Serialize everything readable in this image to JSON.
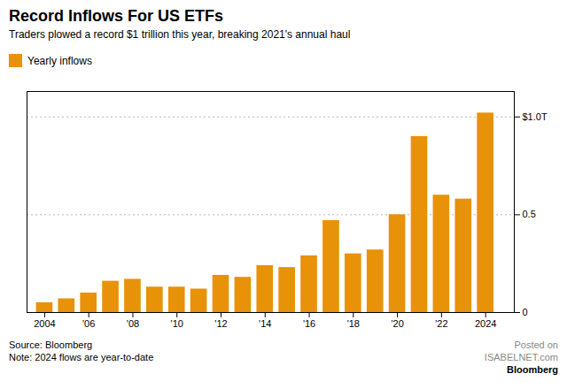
{
  "chart_data": {
    "type": "bar",
    "title": "Record Inflows For US ETFs",
    "subtitle": "Traders plowed a record $1 trillion this year, breaking 2021's annual haul",
    "annotations": [
      "Source: Bloomberg",
      "Note: 2024 flows are year-to-date",
      "Posted on",
      "ISABELNET.com",
      "Bloomberg"
    ],
    "x": [
      2004,
      2005,
      2006,
      2007,
      2008,
      2009,
      2010,
      2011,
      2012,
      2013,
      2014,
      2015,
      2016,
      2017,
      2018,
      2019,
      2020,
      2021,
      2022,
      2023,
      2024
    ],
    "series": [
      {
        "name": "Yearly inflows",
        "color": "#E8920A",
        "values": [
          0.05,
          0.07,
          0.1,
          0.16,
          0.17,
          0.13,
          0.13,
          0.12,
          0.19,
          0.18,
          0.24,
          0.23,
          0.29,
          0.47,
          0.3,
          0.32,
          0.5,
          0.9,
          0.6,
          0.58,
          1.02
        ]
      }
    ],
    "xlim": [
      2003.2,
      2025.3
    ],
    "ylim": [
      0,
      1.13
    ],
    "xticks": [
      2004,
      {
        "value": 2006,
        "label": "'06"
      },
      {
        "value": 2008,
        "label": "'08"
      },
      {
        "value": 2010,
        "label": "'10"
      },
      {
        "value": 2012,
        "label": "'12"
      },
      {
        "value": 2014,
        "label": "'14"
      },
      {
        "value": 2016,
        "label": "'16"
      },
      {
        "value": 2018,
        "label": "'18"
      },
      {
        "value": 2020,
        "label": "'20"
      },
      {
        "value": 2022,
        "label": "'22"
      },
      2024
    ],
    "yticks": [
      0,
      0.5,
      {
        "value": 1.0,
        "label": "$1.0T"
      }
    ],
    "grid": true,
    "legend": "upper left"
  }
}
